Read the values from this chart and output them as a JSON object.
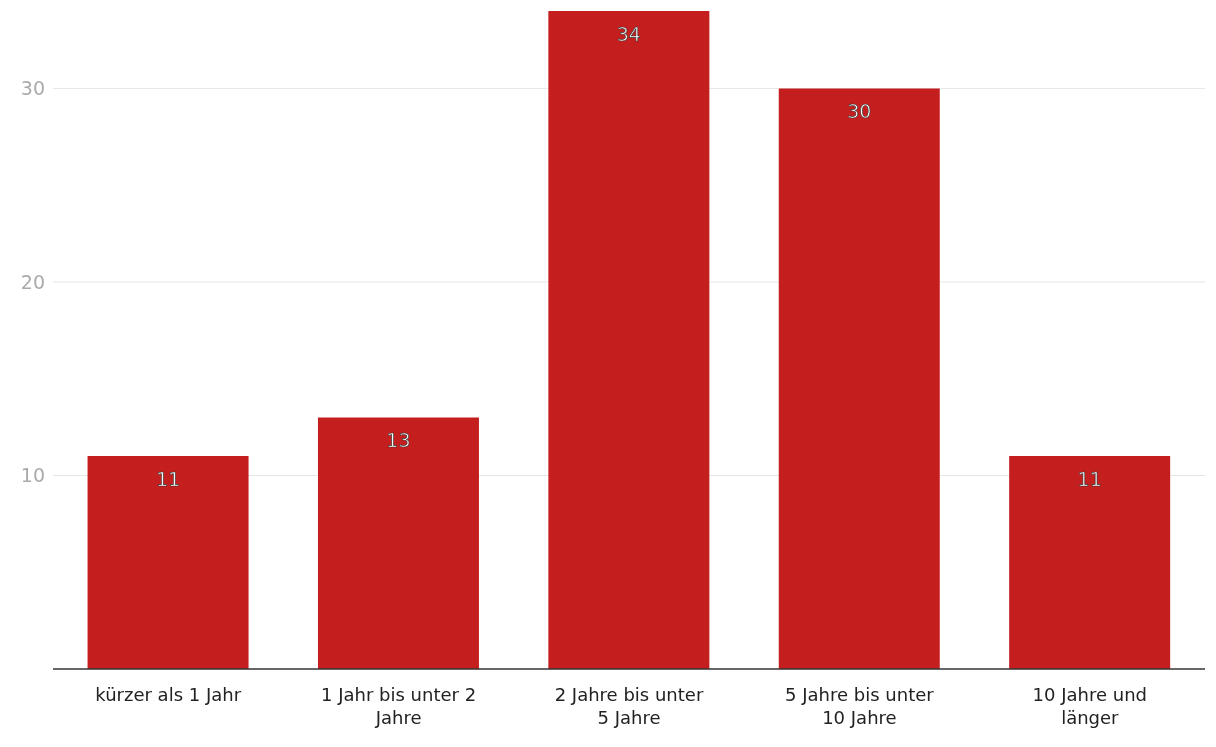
{
  "chart_data": {
    "type": "bar",
    "categories": [
      "kürzer als 1 Jahr",
      "1 Jahr bis unter 2 Jahre",
      "2 Jahre bis unter 5 Jahre",
      "5 Jahre bis unter 10 Jahre",
      "10 Jahre und länger"
    ],
    "values": [
      11,
      13,
      34,
      30,
      11
    ],
    "color": "#c41e1e",
    "ylim": [
      0,
      34
    ],
    "yticks": [
      10,
      20,
      30
    ],
    "grid": "y",
    "data_labels": true,
    "legend": false
  }
}
